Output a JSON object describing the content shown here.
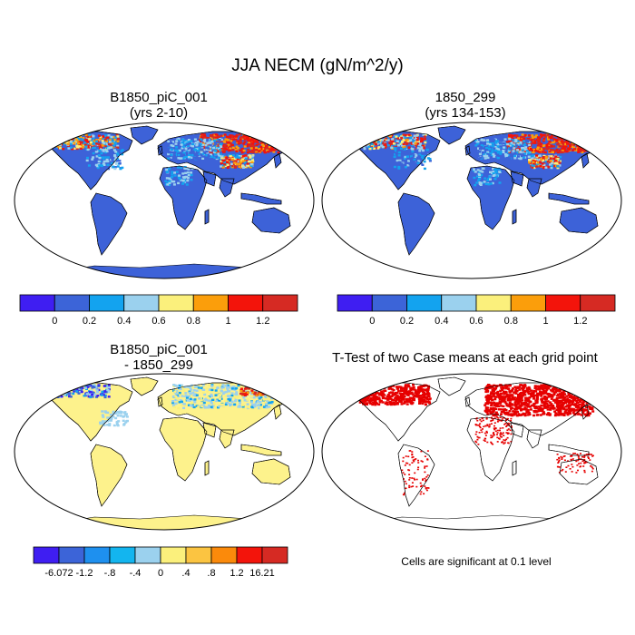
{
  "figure": {
    "title": "JJA NECM (gN/m^2/y)",
    "panels": [
      {
        "id": "p1",
        "title_line1": "B1850_piC_001",
        "title_line2": "(yrs 2-10)"
      },
      {
        "id": "p2",
        "title_line1": "1850_299",
        "title_line2": "(yrs 134-153)"
      },
      {
        "id": "p3",
        "title_line1": "B1850_piC_001",
        "title_line2": "- 1850_299"
      },
      {
        "id": "p4",
        "title_line1": "T-Test of two Case means at each grid point",
        "title_line2": ""
      }
    ],
    "significance_note": "Cells are significant at 0.1 level"
  },
  "colors": {
    "ocean": "#ffffff",
    "land_base": "#3d62d8",
    "diff_base": "#fdf28c",
    "significant": "#e60000"
  },
  "chart_data": [
    {
      "type": "colorbar",
      "for_panels": [
        "p1",
        "p2"
      ],
      "colors": [
        "#3f1ef2",
        "#3c64d8",
        "#13a3ef",
        "#9bd1ee",
        "#fbf07c",
        "#fb9e0b",
        "#f3140b",
        "#d62a23"
      ],
      "tick_labels": [
        "0",
        "0.2",
        "0.4",
        "0.6",
        "0.8",
        "1",
        "1.2"
      ]
    },
    {
      "type": "colorbar",
      "for_panels": [
        "p3"
      ],
      "colors": [
        "#3f1ef2",
        "#3c64d8",
        "#1e90ef",
        "#13b5ef",
        "#9bd1ee",
        "#fbf07c",
        "#fbc441",
        "#fb8a0b",
        "#f3140b",
        "#d62a23"
      ],
      "tick_labels": [
        "-6.072",
        "-1.2",
        "-.8",
        "-.4",
        "0",
        ".4",
        ".8",
        "1.2",
        "16.21"
      ]
    }
  ]
}
